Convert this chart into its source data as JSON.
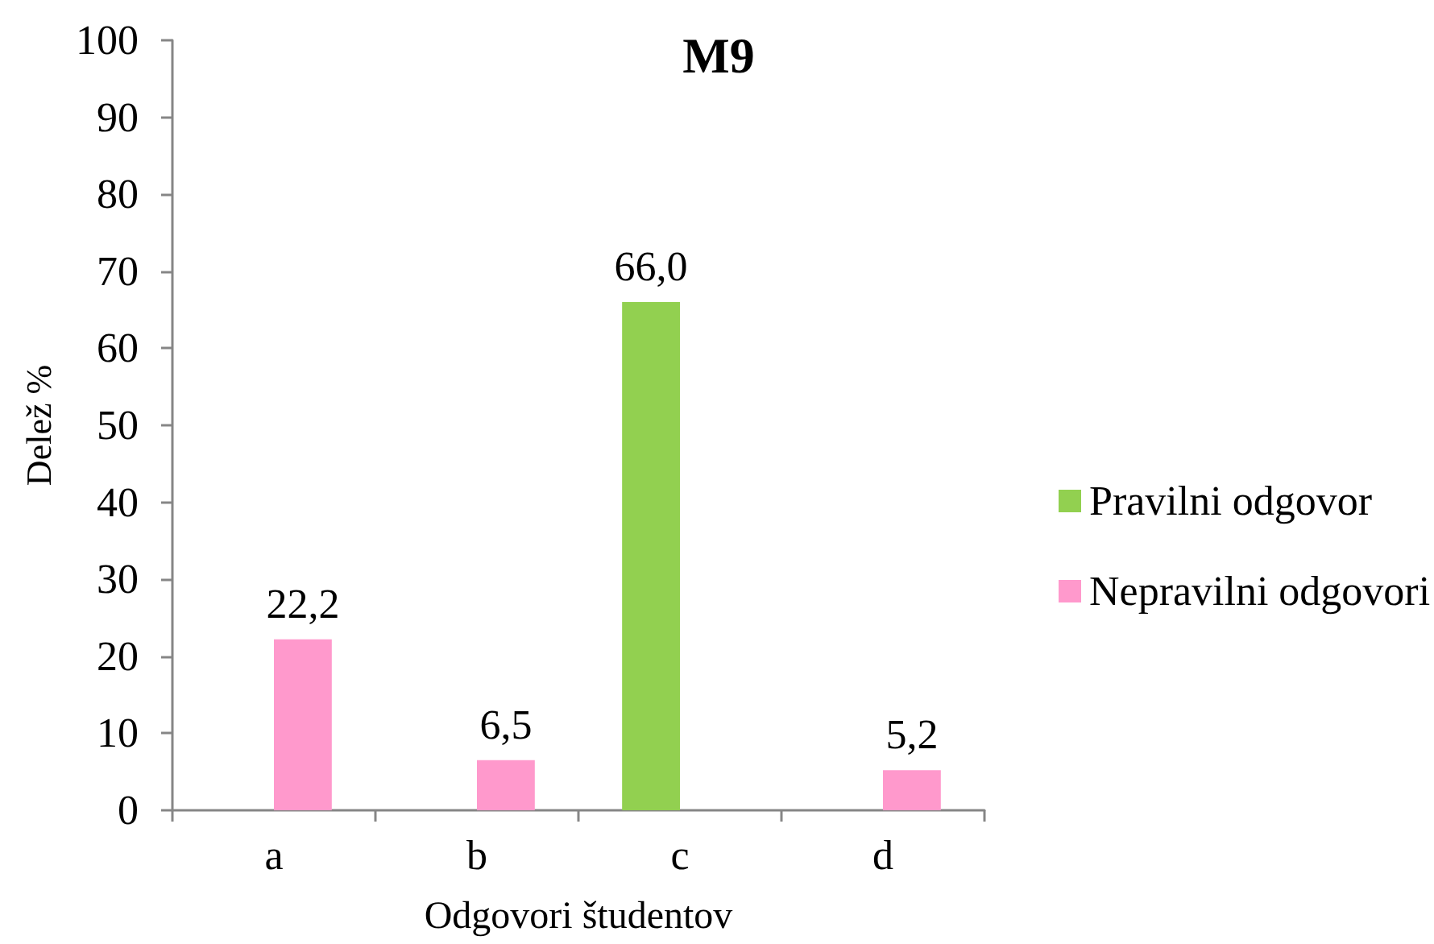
{
  "chart_data": {
    "type": "bar",
    "title": "M9",
    "xlabel": "Odgovori študentov",
    "ylabel": "Delež %",
    "categories": [
      "a",
      "b",
      "c",
      "d"
    ],
    "series": [
      {
        "name": "Pravilni odgovor",
        "color": "#92d050",
        "values": [
          null,
          null,
          66.0,
          null
        ],
        "value_labels": [
          null,
          null,
          "66,0",
          null
        ]
      },
      {
        "name": "Nepravilni odgovori",
        "color": "#ff99cc",
        "values": [
          22.2,
          6.5,
          null,
          5.2
        ],
        "value_labels": [
          "22,2",
          "6,5",
          null,
          "5,2"
        ]
      }
    ],
    "ylim": [
      0,
      100
    ],
    "yticks": [
      0,
      10,
      20,
      30,
      40,
      50,
      60,
      70,
      80,
      90,
      100
    ],
    "grid": false,
    "legend": "right"
  }
}
